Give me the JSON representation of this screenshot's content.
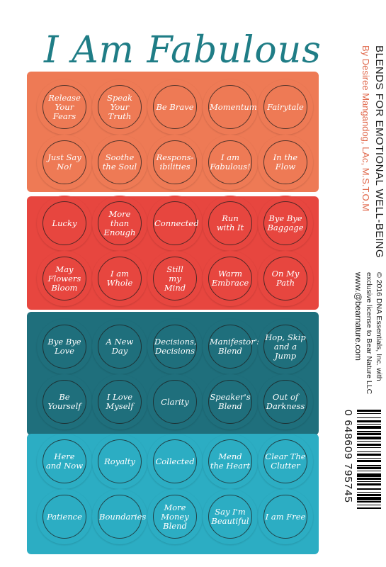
{
  "title": "I Am Fabulous",
  "side": {
    "heading": "BLENDS FOR EMOTIONAL WELL-BEING",
    "author": "By Desiree Mangandog, LAc, M.S.T.O.M",
    "copyright_line1": "© 2016 DNA Essentials, Inc. with",
    "copyright_line2": "exclusive license to Bear Nature LLC",
    "website": "www.@bearnature.com"
  },
  "barcode": {
    "digits": "0   648609   795745"
  },
  "colors": {
    "orange": "#ee7a55",
    "red": "#e7463f",
    "teal": "#1f6f7c",
    "aqua": "#2cadc3",
    "title": "#1f7d86"
  },
  "stickers": [
    {
      "label": "Release\nYour Fears",
      "color": "orange"
    },
    {
      "label": "Speak\nYour Truth",
      "color": "orange"
    },
    {
      "label": "Be Brave",
      "color": "orange"
    },
    {
      "label": "Momentum",
      "color": "orange"
    },
    {
      "label": "Fairytale",
      "color": "orange"
    },
    {
      "label": "Just Say\nNo!",
      "color": "orange"
    },
    {
      "label": "Soothe\nthe Soul",
      "color": "orange"
    },
    {
      "label": "Respons-\nibilities",
      "color": "orange"
    },
    {
      "label": "I am\nFabulous!",
      "color": "orange"
    },
    {
      "label": "In the Flow",
      "color": "orange"
    },
    {
      "label": "Lucky",
      "color": "red"
    },
    {
      "label": "More\nthan\nEnough",
      "color": "red"
    },
    {
      "label": "Connected",
      "color": "red"
    },
    {
      "label": "Run\nwith It",
      "color": "red"
    },
    {
      "label": "Bye Bye\nBaggage",
      "color": "red"
    },
    {
      "label": "May\nFlowers\nBloom",
      "color": "red"
    },
    {
      "label": "I am\nWhole",
      "color": "red"
    },
    {
      "label": "Still\nmy\nMind",
      "color": "red"
    },
    {
      "label": "Warm\nEmbrace",
      "color": "red"
    },
    {
      "label": "On My\nPath",
      "color": "red"
    },
    {
      "label": "Bye Bye\nLove",
      "color": "teal"
    },
    {
      "label": "A New\nDay",
      "color": "teal"
    },
    {
      "label": "Decisions,\nDecisions",
      "color": "teal"
    },
    {
      "label": "Manifestor's\nBlend",
      "color": "teal"
    },
    {
      "label": "Hop, Skip\nand a Jump",
      "color": "teal"
    },
    {
      "label": "Be\nYourself",
      "color": "teal"
    },
    {
      "label": "I Love\nMyself",
      "color": "teal"
    },
    {
      "label": "Clarity",
      "color": "teal"
    },
    {
      "label": "Speaker's\nBlend",
      "color": "teal"
    },
    {
      "label": "Out of\nDarkness",
      "color": "teal"
    },
    {
      "label": "Here\nand Now",
      "color": "aqua"
    },
    {
      "label": "Royalty",
      "color": "aqua"
    },
    {
      "label": "Collected",
      "color": "aqua"
    },
    {
      "label": "Mend\nthe Heart",
      "color": "aqua"
    },
    {
      "label": "Clear The\nClutter",
      "color": "aqua"
    },
    {
      "label": "Patience",
      "color": "aqua"
    },
    {
      "label": "Boundaries",
      "color": "aqua"
    },
    {
      "label": "More\nMoney\nBlend",
      "color": "aqua"
    },
    {
      "label": "Say I'm\nBeautiful",
      "color": "aqua"
    },
    {
      "label": "I am Free",
      "color": "aqua"
    }
  ]
}
